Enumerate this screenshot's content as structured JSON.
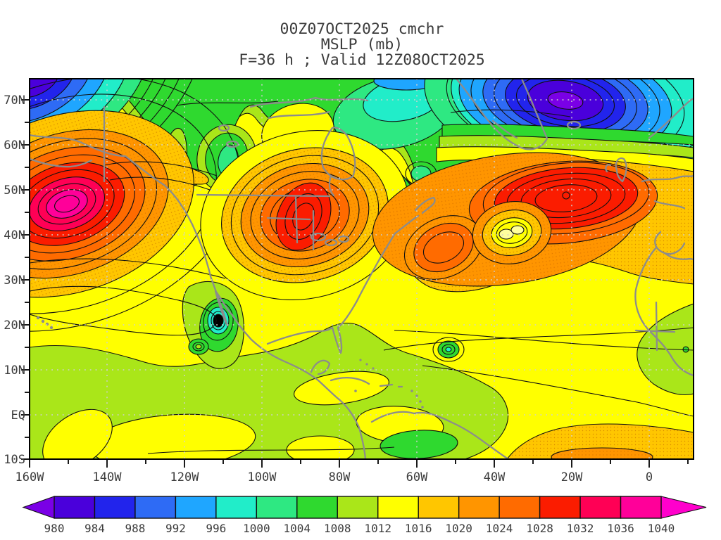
{
  "title": {
    "line1": "00Z07OCT2025 cmchr",
    "line2": "MSLP (mb)",
    "line3": "F=36 h ; Valid 12Z08OCT2025"
  },
  "axes": {
    "lat_ticks": [
      "70N",
      "60N",
      "50N",
      "40N",
      "30N",
      "20N",
      "10N",
      "EQ",
      "10S"
    ],
    "lon_ticks": [
      "160W",
      "140W",
      "120W",
      "100W",
      "80W",
      "60W",
      "40W",
      "20W",
      "0"
    ]
  },
  "colorbar": {
    "levels": [
      "980",
      "984",
      "988",
      "992",
      "996",
      "1000",
      "1004",
      "1008",
      "1012",
      "1016",
      "1020",
      "1024",
      "1028",
      "1032",
      "1036",
      "1040"
    ],
    "below_color": "#7A00E6",
    "above_color": "#FF00CC"
  },
  "palette": {
    "below": "#7A00E6",
    "980": "#4A00DB",
    "984": "#2224EC",
    "988": "#2E6BF5",
    "992": "#1FA6FF",
    "996": "#21EDC9",
    "1000": "#2EE882",
    "1004": "#2FD92F",
    "1008": "#AAE619",
    "1012": "#FFFF00",
    "1016": "#FFC600",
    "1020": "#FF9500",
    "1024": "#FF6B00",
    "1028": "#FB1C00",
    "1032": "#FF0055",
    "1036": "#FF0099",
    "pale_core": "#FFFF9C",
    "tc_core": "#000000",
    "stipple_dot": "#D98A00",
    "stipple_dot2": "#E07800",
    "contour": "#101010",
    "coastline": "#8C8C8C",
    "grid": "#D0D0D0",
    "frame": "#000000",
    "text": "#3C3C3C"
  },
  "chart_data": {
    "type": "heatmap",
    "variable": "MSLP",
    "units": "mb",
    "model_run": "00Z07OCT2025",
    "model_label": "cmchr",
    "forecast_hour": 36,
    "valid_time": "12Z08OCT2025",
    "lon_range_deg": [
      -160,
      11
    ],
    "lat_range_deg": [
      -10,
      75
    ],
    "shading_interval_mb": 4,
    "contour_interval_mb": 2,
    "colorbar_levels_mb": [
      980,
      984,
      988,
      992,
      996,
      1000,
      1004,
      1008,
      1012,
      1016,
      1020,
      1024,
      1028,
      1032,
      1036,
      1040
    ],
    "legend_position": "bottom",
    "grid_lines": "dotted, every 10 deg lat / 20 deg lon",
    "pressure_centers": [
      {
        "system": "high",
        "lat_deg": 47,
        "lon_deg": -151,
        "approx_central_mb": 1040
      },
      {
        "system": "low",
        "lat_deg": 74,
        "lon_deg": -158,
        "approx_central_mb": 982
      },
      {
        "system": "low",
        "lat_deg": 57,
        "lon_deg": -109,
        "approx_central_mb": 1002
      },
      {
        "system": "low",
        "lat_deg": 66,
        "lon_deg": -63,
        "approx_central_mb": 997
      },
      {
        "system": "low",
        "lat_deg": 54,
        "lon_deg": -59,
        "approx_central_mb": 1001
      },
      {
        "system": "high",
        "lat_deg": 44,
        "lon_deg": -89,
        "approx_central_mb": 1030
      },
      {
        "system": "low",
        "lat_deg": 68,
        "lon_deg": -22,
        "approx_central_mb": 978
      },
      {
        "system": "high",
        "lat_deg": 49,
        "lon_deg": -21,
        "approx_central_mb": 1033
      },
      {
        "system": "high",
        "lat_deg": 37,
        "lon_deg": -53,
        "approx_central_mb": 1026
      },
      {
        "system": "cutoff-low",
        "lat_deg": 41,
        "lon_deg": -35,
        "approx_central_mb": 1013
      },
      {
        "system": "tropical-cyclone",
        "lat_deg": 21,
        "lon_deg": -111,
        "approx_central_mb": 974
      },
      {
        "system": "tropical-low",
        "lat_deg": 15,
        "lon_deg": -116,
        "approx_central_mb": 1003
      },
      {
        "system": "tropical-cyclone",
        "lat_deg": 15,
        "lon_deg": -52,
        "approx_central_mb": 1001
      }
    ]
  }
}
